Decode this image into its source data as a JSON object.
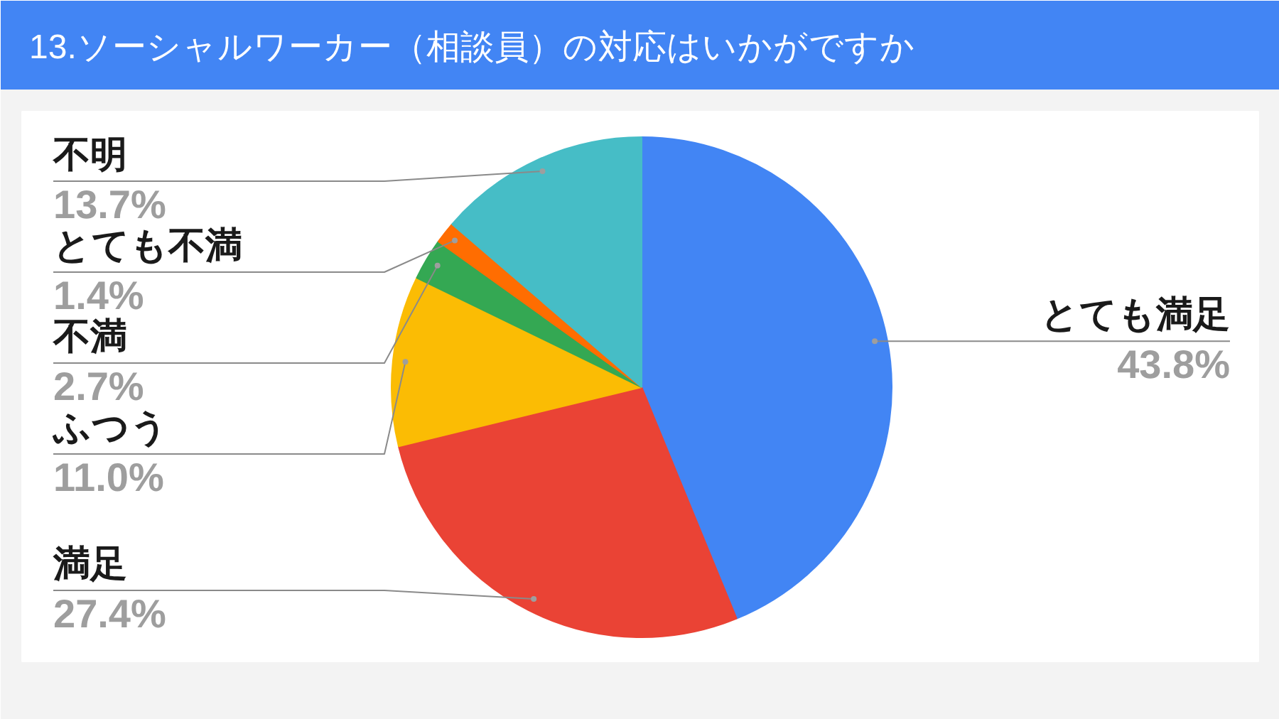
{
  "chart_data": {
    "type": "pie",
    "title": "13.ソーシャルワーカー（相談員）の対応はいかがですか",
    "categories": [
      "とても満足",
      "満足",
      "ふつう",
      "不満",
      "とても不満",
      "不明"
    ],
    "values": [
      43.8,
      27.4,
      11.0,
      2.7,
      1.4,
      13.7
    ],
    "value_labels": [
      "43.8%",
      "27.4%",
      "11.0%",
      "2.7%",
      "1.4%",
      "13.7%"
    ],
    "colors": [
      "#4285f4",
      "#ea4335",
      "#fbbc04",
      "#34a853",
      "#ff6d01",
      "#46bdc6"
    ]
  }
}
